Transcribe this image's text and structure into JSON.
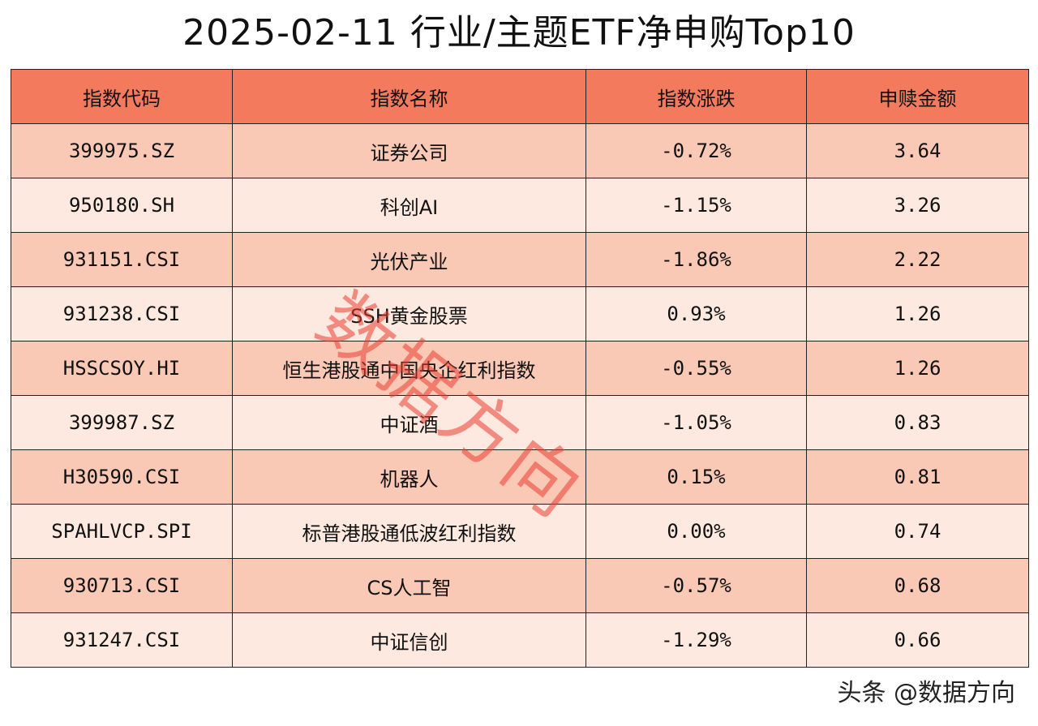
{
  "title": "2025-02-11 行业/主题ETF净申购Top10",
  "table": {
    "headers": [
      "指数代码",
      "指数名称",
      "指数涨跌",
      "申赎金额"
    ],
    "rows": [
      {
        "code": "399975.SZ",
        "name": "证券公司",
        "change": "-0.72%",
        "amount": "3.64"
      },
      {
        "code": "950180.SH",
        "name": "科创AI",
        "change": "-1.15%",
        "amount": "3.26"
      },
      {
        "code": "931151.CSI",
        "name": "光伏产业",
        "change": "-1.86%",
        "amount": "2.22"
      },
      {
        "code": "931238.CSI",
        "name": "SSH黄金股票",
        "change": "0.93%",
        "amount": "1.26"
      },
      {
        "code": "HSSCSOY.HI",
        "name": "恒生港股通中国央企红利指数",
        "change": "-0.55%",
        "amount": "1.26"
      },
      {
        "code": "399987.SZ",
        "name": "中证酒",
        "change": "-1.05%",
        "amount": "0.83"
      },
      {
        "code": "H30590.CSI",
        "name": "机器人",
        "change": "0.15%",
        "amount": "0.81"
      },
      {
        "code": "SPAHLVCP.SPI",
        "name": "标普港股通低波红利指数",
        "change": "0.00%",
        "amount": "0.74"
      },
      {
        "code": "930713.CSI",
        "name": "CS人工智",
        "change": "-0.57%",
        "amount": "0.68"
      },
      {
        "code": "931247.CSI",
        "name": "中证信创",
        "change": "-1.29%",
        "amount": "0.66"
      }
    ]
  },
  "watermark": "数据方向",
  "credit": "头条 @数据方向",
  "colors": {
    "header_bg": "#f47a5e",
    "row_odd_bg": "#f9c9b6",
    "row_even_bg": "#fde9df",
    "watermark": "#eb3c32"
  }
}
